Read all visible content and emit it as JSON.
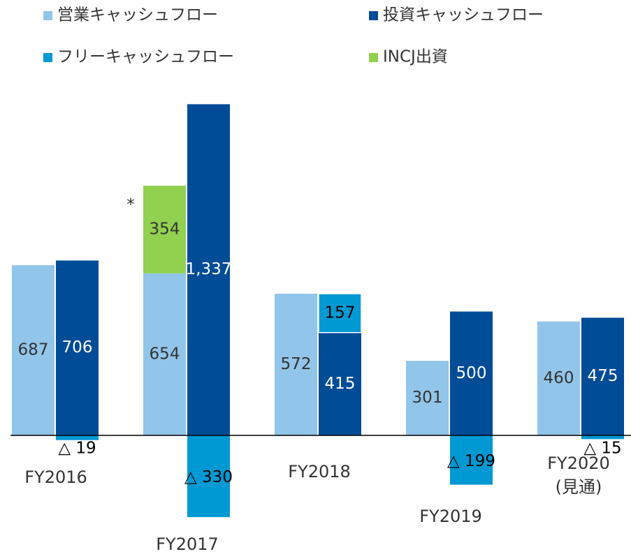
{
  "chart_data": {
    "type": "bar",
    "categories": [
      "FY2016",
      "FY2017",
      "FY2018",
      "FY2019",
      "FY2020\n(見通)"
    ],
    "series": [
      {
        "name": "営業キャッシュフロー",
        "color": "#92c5ea",
        "values": [
          687,
          654,
          572,
          301,
          460
        ]
      },
      {
        "name": "投資キャッシュフロー",
        "color": "#004c97",
        "values": [
          706,
          1337,
          415,
          500,
          475
        ],
        "value_labels": [
          "706",
          "1,337",
          "415",
          "500",
          "475"
        ]
      },
      {
        "name": "フリーキャッシュフロー",
        "color": "#0099d4",
        "values": [
          -19,
          -330,
          157,
          -199,
          -15
        ],
        "value_labels": [
          "△ 19",
          "△ 330",
          "157",
          "△ 199",
          "△ 15"
        ]
      },
      {
        "name": "INCJ出資",
        "color": "#92d050",
        "values": [
          null,
          354,
          null,
          null,
          null
        ]
      }
    ],
    "annotation": "*"
  }
}
